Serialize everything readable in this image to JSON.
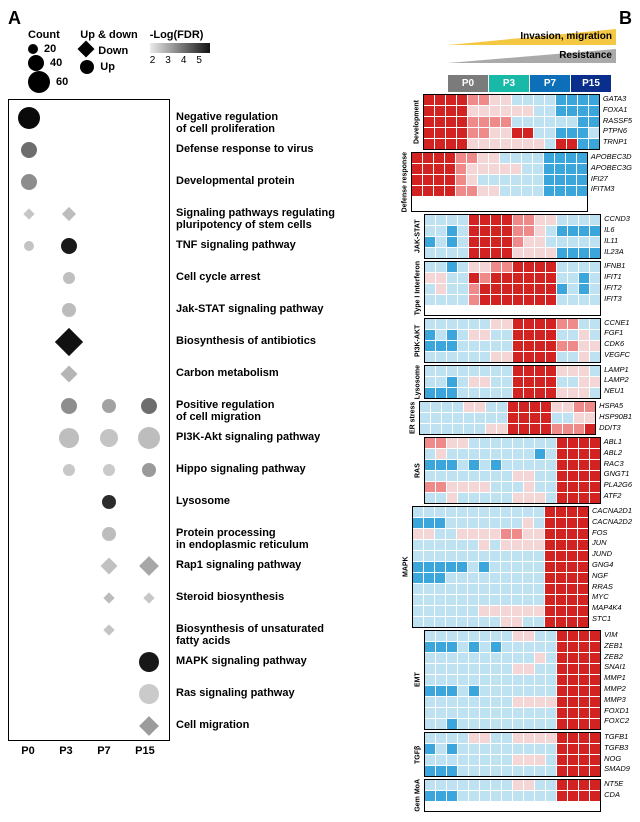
{
  "panelA": {
    "label": "A",
    "legend": {
      "count": {
        "title": "Count",
        "levels": [
          {
            "v": 20,
            "r": 5
          },
          {
            "v": 40,
            "r": 8
          },
          {
            "v": 60,
            "r": 11
          }
        ]
      },
      "shape": {
        "title": "Up & down",
        "down": "Down",
        "up": "Up"
      },
      "fdr": {
        "title": "-Log(FDR)",
        "ticks": [
          "2",
          "3",
          "4",
          "5"
        ]
      }
    },
    "x": [
      "P0",
      "P3",
      "P7",
      "P15"
    ],
    "terms": [
      "Negative regulation\nof cell proliferation",
      "Defense response to virus",
      "Developmental protein",
      "Signaling pathways regulating\npluripotency of stem cells",
      "TNF signaling pathway",
      "Cell cycle arrest",
      "Jak-STAT signaling pathway",
      "Biosynthesis of antibiotics",
      "Carbon metabolism",
      "Positive regulation\nof cell migration",
      "PI3K-Akt signaling pathway",
      "Hippo signaling pathway",
      "Lysosome",
      "Protein processing\nin endoplasmic reticulum",
      "Rap1 signaling pathway",
      "Steroid biosynthesis",
      "Biosynthesis of unsaturated\nfatty acids",
      "MAPK signaling pathway",
      "Ras signaling pathway",
      "Cell migration"
    ],
    "points": [
      {
        "x": 0,
        "term": 0,
        "shape": "up",
        "r": 11,
        "c": "#0a0a0a"
      },
      {
        "x": 0,
        "term": 1,
        "shape": "up",
        "r": 8,
        "c": "#6d6d6d"
      },
      {
        "x": 0,
        "term": 2,
        "shape": "up",
        "r": 8,
        "c": "#8d8d8d"
      },
      {
        "x": 0,
        "term": 3,
        "shape": "down",
        "r": 4,
        "c": "#c6c6c6"
      },
      {
        "x": 0,
        "term": 4,
        "shape": "up",
        "r": 5,
        "c": "#c3c3c3"
      },
      {
        "x": 1,
        "term": 3,
        "shape": "down",
        "r": 5,
        "c": "#bdbdbd"
      },
      {
        "x": 1,
        "term": 4,
        "shape": "up",
        "r": 8,
        "c": "#1a1a1a"
      },
      {
        "x": 1,
        "term": 5,
        "shape": "up",
        "r": 6,
        "c": "#bfbfbf"
      },
      {
        "x": 1,
        "term": 6,
        "shape": "up",
        "r": 7,
        "c": "#bcbcbc"
      },
      {
        "x": 1,
        "term": 7,
        "shape": "down",
        "r": 10,
        "c": "#111111"
      },
      {
        "x": 1,
        "term": 8,
        "shape": "down",
        "r": 6,
        "c": "#b5b5b5"
      },
      {
        "x": 1,
        "term": 9,
        "shape": "up",
        "r": 8,
        "c": "#8e8e8e"
      },
      {
        "x": 1,
        "term": 10,
        "shape": "up",
        "r": 10,
        "c": "#bebebe"
      },
      {
        "x": 1,
        "term": 11,
        "shape": "up",
        "r": 6,
        "c": "#c8c8c8"
      },
      {
        "x": 2,
        "term": 9,
        "shape": "up",
        "r": 7,
        "c": "#a2a2a2"
      },
      {
        "x": 2,
        "term": 10,
        "shape": "up",
        "r": 9,
        "c": "#c4c4c4"
      },
      {
        "x": 2,
        "term": 11,
        "shape": "up",
        "r": 6,
        "c": "#cacaca"
      },
      {
        "x": 2,
        "term": 12,
        "shape": "up",
        "r": 7,
        "c": "#2c2c2c"
      },
      {
        "x": 2,
        "term": 13,
        "shape": "up",
        "r": 7,
        "c": "#bdbdbd"
      },
      {
        "x": 2,
        "term": 14,
        "shape": "down",
        "r": 6,
        "c": "#c1c1c1"
      },
      {
        "x": 2,
        "term": 15,
        "shape": "down",
        "r": 4,
        "c": "#bcbcbc"
      },
      {
        "x": 2,
        "term": 16,
        "shape": "down",
        "r": 4,
        "c": "#c4c4c4"
      },
      {
        "x": 3,
        "term": 9,
        "shape": "up",
        "r": 8,
        "c": "#6e6e6e"
      },
      {
        "x": 3,
        "term": 10,
        "shape": "up",
        "r": 11,
        "c": "#bdbdbd"
      },
      {
        "x": 3,
        "term": 11,
        "shape": "up",
        "r": 7,
        "c": "#9a9a9a"
      },
      {
        "x": 3,
        "term": 14,
        "shape": "down",
        "r": 7,
        "c": "#a7a7a7"
      },
      {
        "x": 3,
        "term": 15,
        "shape": "down",
        "r": 4,
        "c": "#c7c7c7"
      },
      {
        "x": 3,
        "term": 17,
        "shape": "up",
        "r": 10,
        "c": "#171717"
      },
      {
        "x": 3,
        "term": 18,
        "shape": "up",
        "r": 10,
        "c": "#cacaca"
      },
      {
        "x": 3,
        "term": 19,
        "shape": "down",
        "r": 7,
        "c": "#9c9c9c"
      }
    ]
  },
  "panelB": {
    "label": "B",
    "triangles": {
      "t1": "Invasion, migration",
      "t2": "Resistance"
    },
    "cols": [
      {
        "label": "P0",
        "color": "#7b7b7b"
      },
      {
        "label": "P3",
        "color": "#19b9a8"
      },
      {
        "label": "P7",
        "color": "#0d6fb8"
      },
      {
        "label": "P15",
        "color": "#0a2e8c"
      }
    ],
    "palette": {
      "hi": "#d32222",
      "mh": "#ef8a8a",
      "mid": "#f5d6d6",
      "ml": "#bfe2f2",
      "lo": "#3aa6dc",
      "vlo": "#1074b5"
    },
    "groups": [
      {
        "name": "Development",
        "genes": [
          "GATA3",
          "FOXA1",
          "RASSF5",
          "PTPN6",
          "TRNP1"
        ],
        "pattern": [
          "HHHH MMmm llll vvvv",
          "HHHH mmmm mmll vvvv",
          "HHHH MMMM llll llvv",
          "HHHH MMmm HHll vvvl",
          "HHHH mmmm mmml HHvv"
        ]
      },
      {
        "name": "Defense response",
        "genes": [
          "APOBEC3D",
          "APOBEC3G",
          "IFI27",
          "IFITM3"
        ],
        "pattern": [
          "HHHH MMmm llll vvvv",
          "HHHH Mmmm mmll vvvv",
          "HHHH Mmll llll vvvv",
          "HHHH MMmm llll vvvv"
        ]
      },
      {
        "name": "JAK-STAT",
        "genes": [
          "CCND3",
          "IL6",
          "IL11",
          "IL23A"
        ],
        "pattern": [
          "llll HHHH MMmm llll",
          "llvl HHHH MMml vvvv",
          "vlvl HHHH Mmml llll",
          "llll HHHH mmmm vvvv"
        ]
      },
      {
        "name": "Type I Interferon",
        "genes": [
          "IFNB1",
          "IFIT1",
          "IFIT2",
          "IFIT3"
        ],
        "pattern": [
          "llvl mmMM HHHH llll",
          "mmll HMHH HHHH llvl",
          "lmll MHHH HHHH vlvl",
          "llll MHHH HHHH llll"
        ]
      },
      {
        "name": "PI3K-AKT",
        "genes": [
          "CCNE1",
          "FGF1",
          "CDK6",
          "VEGFC"
        ],
        "pattern": [
          "llll llmm HHHH MMll",
          "vlvl mmll HHHH llml",
          "vvvl llll HHHH MMmm",
          "llll llmm HHHH llml"
        ]
      },
      {
        "name": "Lysosome",
        "genes": [
          "LAMP1",
          "LAMP2",
          "NEU1"
        ],
        "pattern": [
          "llll llll HHHH mmml",
          "llvl mmll HHHH llmm",
          "vvvl llll HHHH mmml"
        ]
      },
      {
        "name": "ER stress",
        "genes": [
          "HSPA5",
          "HSP90B1",
          "DDIT3"
        ],
        "pattern": [
          "llll mmll HHHH mmMM",
          "llll llll HHHH llmm",
          "llll llmm HHHH MMMH"
        ]
      },
      {
        "name": "RAS",
        "genes": [
          "ABL1",
          "ABL2",
          "RAC3",
          "GNGT1",
          "PLA2G6",
          "ATF2"
        ],
        "pattern": [
          "MMmm llll llll HHHH",
          "lmll llll llvl HHHH",
          "vvvl vlvl llll HHHH",
          "llll llll mmll HHHH",
          "MMmm mmll lmll HHHH",
          "llml llll mmml HHHH"
        ]
      },
      {
        "name": "MAPK",
        "genes": [
          "CACNA2D1",
          "CACNA2D2",
          "FOS",
          "JUN",
          "JUND",
          "GNG4",
          "NGF",
          "RRAS",
          "MYC",
          "MAP4K4",
          "STC1"
        ],
        "pattern": [
          "llll llll llll HHHH",
          "vvvl llll llml HHHH",
          "mmll mmmm MMmm HHHH",
          "llll llml mmmm HHHH",
          "llll llll llll HHHH",
          "vvvv vlvl llll HHHH",
          "vvvl llll llll HHHH",
          "llll llll llll HHHH",
          "llll llll llll HHHH",
          "llll llmm mmmm HHHH",
          "llll llll mmll HHHH"
        ]
      },
      {
        "name": "EMT",
        "genes": [
          "VIM",
          "ZEB1",
          "ZEB2",
          "SNAI1",
          "MMP1",
          "MMP2",
          "MMP3",
          "FOXD1",
          "FOXC2"
        ],
        "pattern": [
          "llll llll mmll HHHH",
          "vvvl vlvl llll HHHH",
          "llll llll llml HHHH",
          "llll llll mmll HHHH",
          "llll llll llll HHHH",
          "vvvl vlll llll HHHH",
          "llll llll mmmm HHHH",
          "llll llll llll HHHH",
          "llvl llll llll HHHH"
        ]
      },
      {
        "name": "TGFβ",
        "genes": [
          "TGFB1",
          "TGFB3",
          "NOG",
          "SMAD9"
        ],
        "pattern": [
          "llll mmll mmmm HHHH",
          "vlvl llll llll HHHH",
          "llll llll mmml HHHH",
          "vvvl llll llll HHHH"
        ]
      },
      {
        "name": "Gem MoA",
        "genes": [
          "NT5E",
          "CDA"
        ],
        "pattern": [
          "llll llll mmll HHHH",
          "vvvl llll llll HHHH"
        ]
      }
    ]
  }
}
